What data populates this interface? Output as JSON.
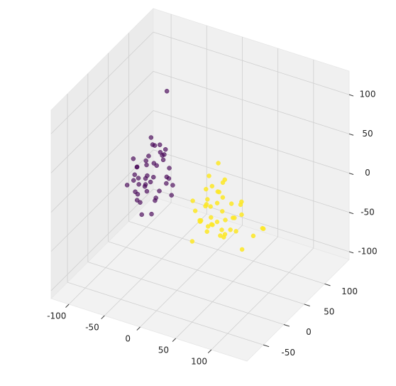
{
  "chart_data": {
    "type": "scatter3d",
    "xlim": [
      -125,
      150
    ],
    "ylim": [
      -90,
      160
    ],
    "zlim": [
      -110,
      130
    ],
    "xticks": [
      -100,
      -50,
      0,
      50,
      100
    ],
    "yticks": [
      -50,
      0,
      50,
      100
    ],
    "zticks": [
      -100,
      -50,
      0,
      50,
      100
    ],
    "grid": true,
    "series": [
      {
        "color": "#440154",
        "x": [
          -60,
          -75,
          -48,
          -82,
          -55,
          -66,
          -40,
          -90,
          -58,
          -70,
          -45,
          -62,
          -78,
          -52,
          -68,
          -35,
          -85,
          -60,
          -72,
          -50,
          -64,
          -56,
          -80,
          -44,
          -74,
          -61,
          -67,
          -53,
          -88,
          -42,
          -59,
          -71,
          -47,
          -77,
          -63,
          -54,
          -69,
          -38,
          -83,
          -57,
          -65,
          -49,
          -73,
          -60,
          -58
        ],
        "y": [
          40,
          55,
          30,
          45,
          60,
          25,
          50,
          35,
          70,
          20,
          45,
          65,
          30,
          50,
          40,
          35,
          55,
          45,
          28,
          62,
          38,
          48,
          42,
          58,
          33,
          52,
          44,
          36,
          50,
          60,
          26,
          47,
          54,
          40,
          68,
          32,
          46,
          56,
          38,
          42,
          50,
          34,
          58,
          80,
          15
        ],
        "z": [
          -10,
          5,
          -25,
          0,
          15,
          -30,
          -5,
          -20,
          10,
          -15,
          20,
          -35,
          -8,
          25,
          -18,
          -2,
          -28,
          35,
          12,
          -12,
          -22,
          8,
          -40,
          3,
          -26,
          30,
          -6,
          18,
          -14,
          -32,
          2,
          -20,
          28,
          -10,
          22,
          -45,
          6,
          -16,
          14,
          -4,
          40,
          -24,
          10,
          85,
          -38
        ]
      },
      {
        "color": "#fde725",
        "x": [
          30,
          45,
          15,
          60,
          20,
          50,
          35,
          10,
          70,
          25,
          40,
          55,
          5,
          80,
          30,
          45,
          20,
          65,
          35,
          50,
          90,
          15,
          40,
          25,
          60,
          30,
          75,
          45,
          10,
          55,
          35,
          100,
          20,
          50,
          40,
          28,
          62,
          18,
          48,
          110,
          33,
          42,
          58,
          22,
          38
        ],
        "y": [
          30,
          20,
          45,
          10,
          35,
          25,
          50,
          40,
          15,
          55,
          5,
          35,
          30,
          20,
          60,
          40,
          10,
          45,
          25,
          0,
          30,
          50,
          15,
          35,
          40,
          20,
          25,
          55,
          20,
          45,
          -5,
          35,
          65,
          30,
          40,
          10,
          50,
          25,
          -10,
          20,
          60,
          30,
          5,
          45,
          35
        ],
        "z": [
          -10,
          -20,
          0,
          -30,
          -15,
          10,
          -25,
          -40,
          -5,
          -20,
          15,
          -35,
          -10,
          -45,
          5,
          -28,
          -8,
          -18,
          20,
          -12,
          -30,
          -50,
          -22,
          25,
          -38,
          -2,
          8,
          -15,
          -55,
          -25,
          -8,
          -20,
          -12,
          30,
          -42,
          -18,
          -5,
          -30,
          -16,
          -10,
          -60,
          12,
          -26,
          -34,
          45
        ]
      }
    ]
  }
}
